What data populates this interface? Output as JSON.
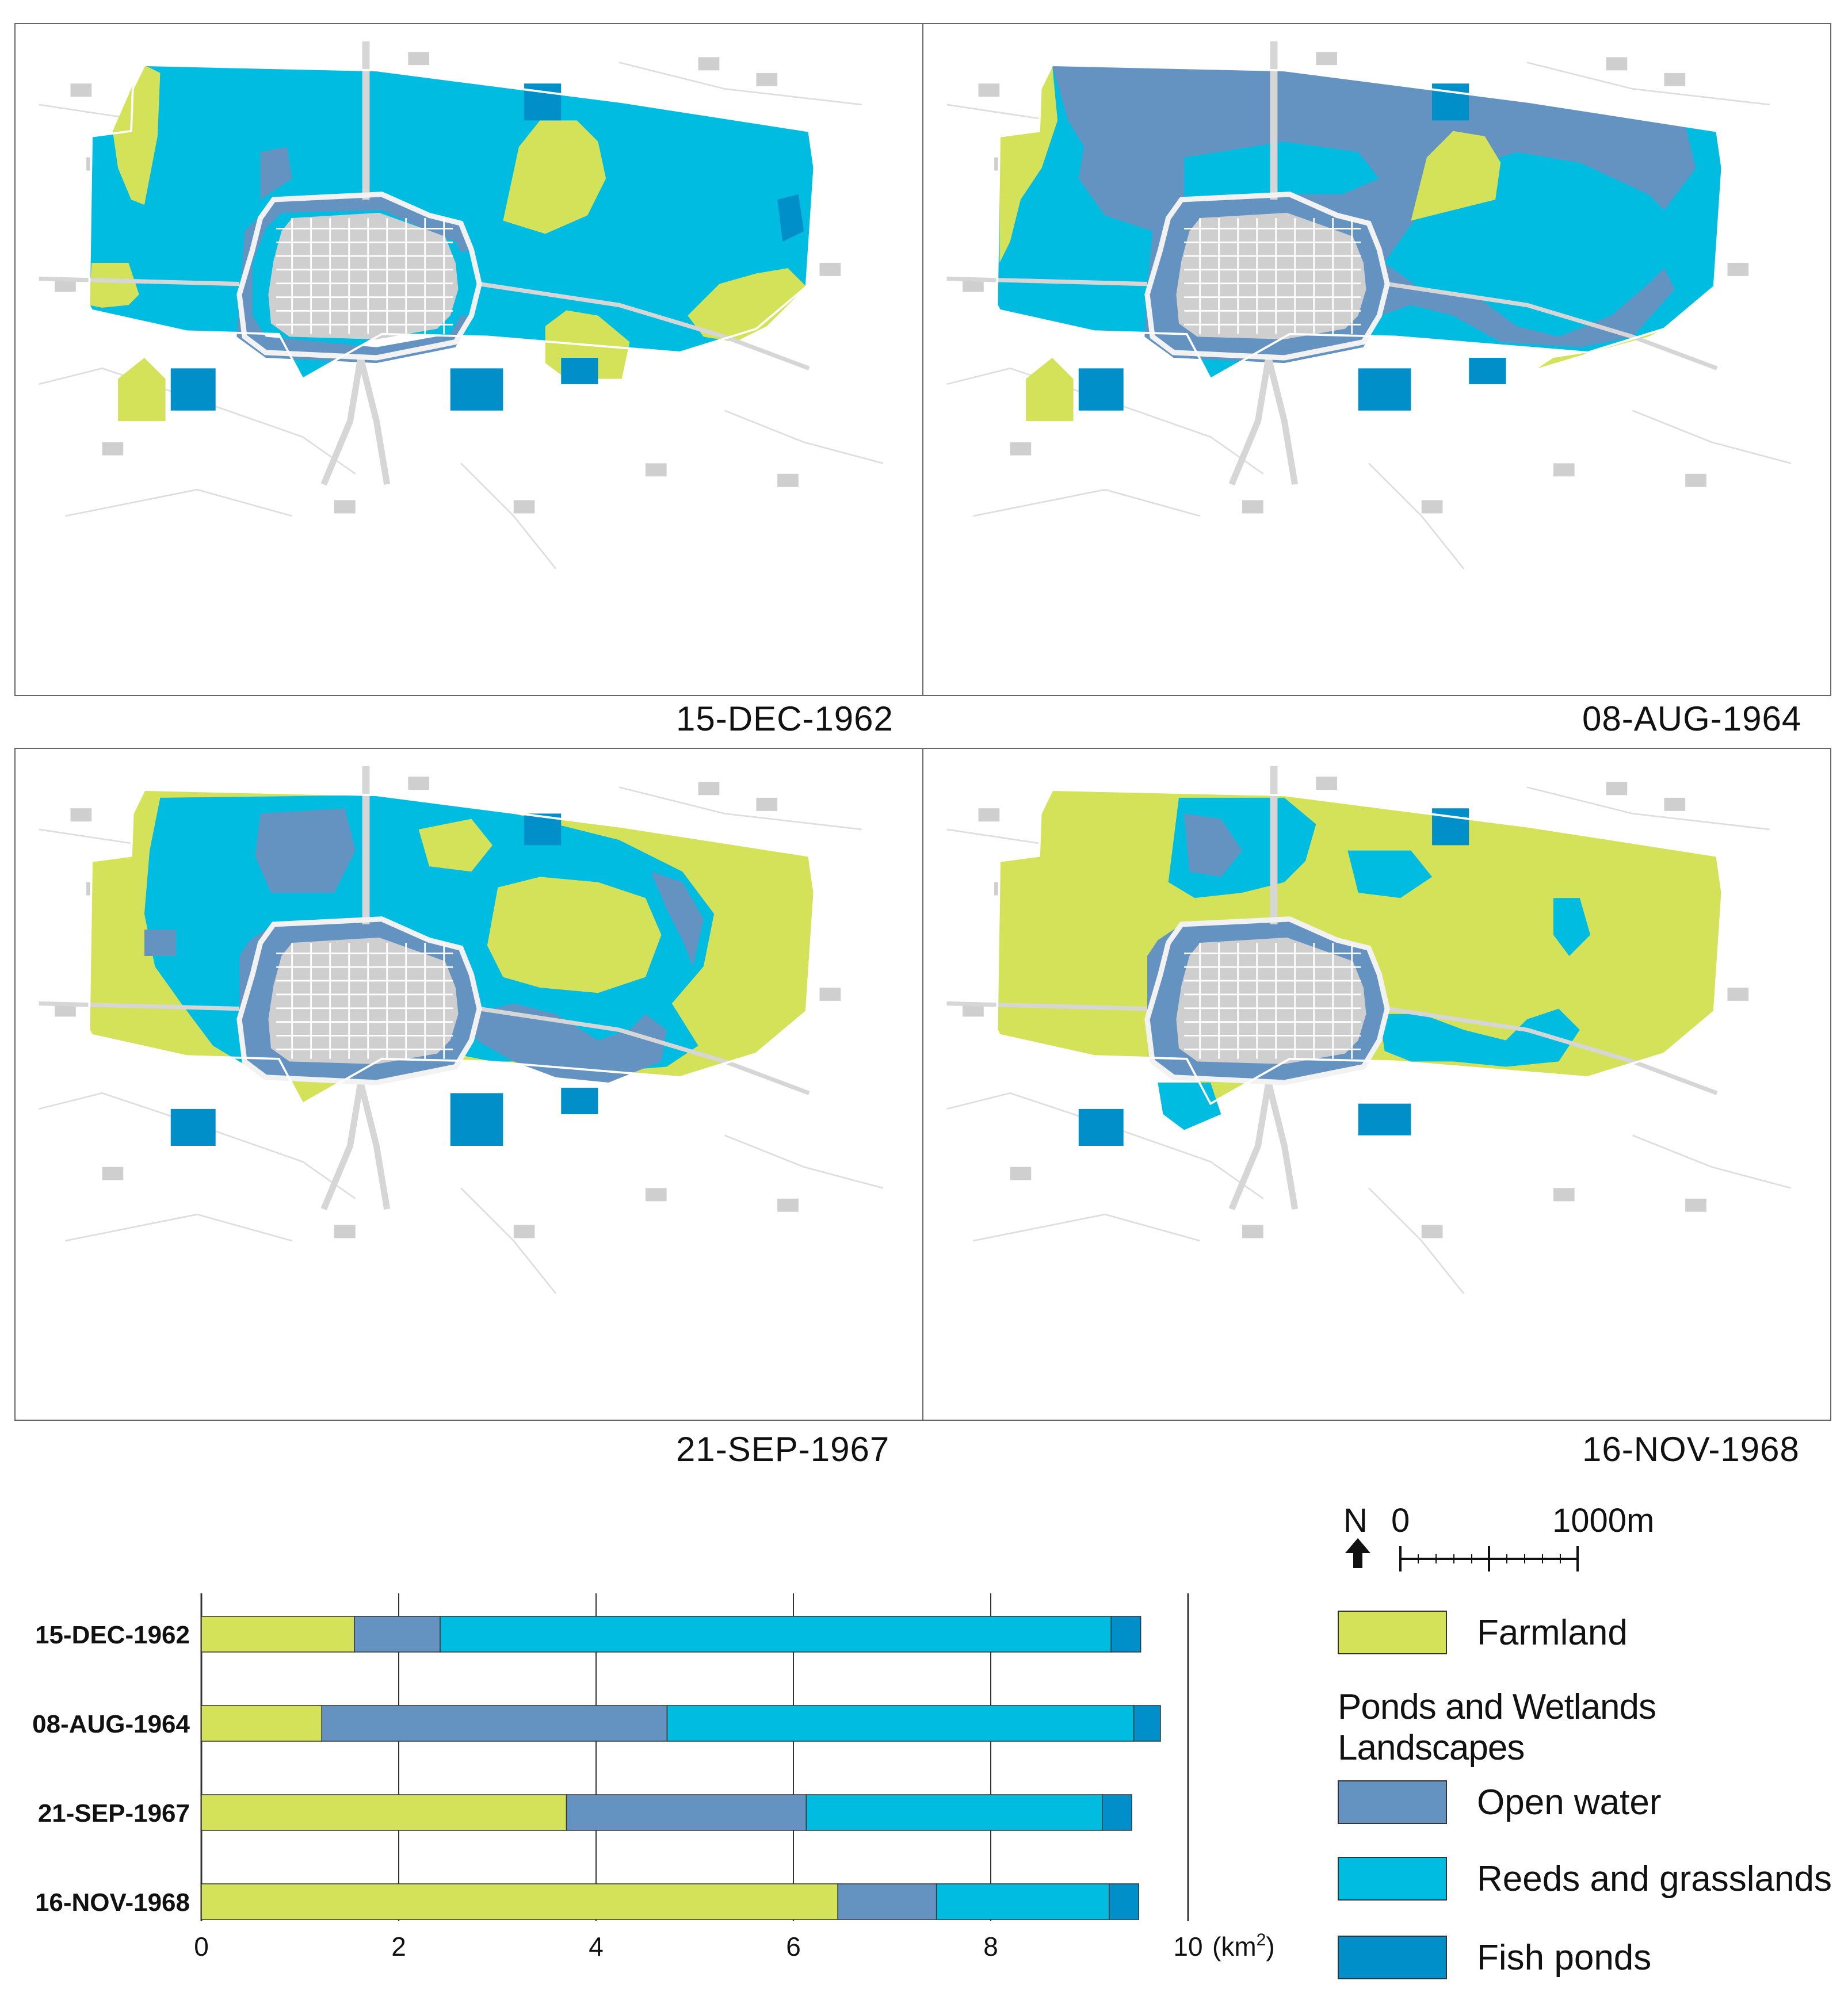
{
  "colors": {
    "farmland": "#d4e25a",
    "open_water": "#6593c1",
    "reeds": "#00bce0",
    "fish_ponds": "#008fc8",
    "urban": "#cfcfcf",
    "road": "#d6d6d6"
  },
  "maps": [
    {
      "date": "15-DEC-1962",
      "proportions": {
        "farmland": 1.55,
        "open_water": 0.87,
        "reeds": 6.8,
        "fish_ponds": 0.3
      }
    },
    {
      "date": "08-AUG-1964",
      "proportions": {
        "farmland": 1.22,
        "open_water": 3.5,
        "reeds": 4.73,
        "fish_ponds": 0.27
      }
    },
    {
      "date": "21-SEP-1967",
      "proportions": {
        "farmland": 3.7,
        "open_water": 2.43,
        "reeds": 3.0,
        "fish_ponds": 0.3
      }
    },
    {
      "date": "16-NOV-1968",
      "proportions": {
        "farmland": 6.45,
        "open_water": 1.0,
        "reeds": 1.75,
        "fish_ponds": 0.3
      }
    }
  ],
  "legend": {
    "farmland": "Farmland",
    "heading": "Ponds and Wetlands Landscapes",
    "open_water": "Open water",
    "reeds": "Reeds and grasslands",
    "fish_ponds": "Fish ponds"
  },
  "scale": {
    "north": "N",
    "start": "0",
    "end": "1000m",
    "north_icon": "north-arrow-icon"
  },
  "chart_data": {
    "type": "bar",
    "orientation": "horizontal",
    "stacked": true,
    "categories": [
      "15-DEC-1962",
      "08-AUG-1964",
      "21-SEP-1967",
      "16-NOV-1968"
    ],
    "series": [
      {
        "name": "Farmland",
        "values": [
          1.55,
          1.22,
          3.7,
          6.45
        ],
        "color": "#d4e25a"
      },
      {
        "name": "Open water",
        "values": [
          0.87,
          3.5,
          2.43,
          1.0
        ],
        "color": "#6593c1"
      },
      {
        "name": "Reeds and grasslands",
        "values": [
          6.8,
          4.73,
          3.0,
          1.75
        ],
        "color": "#00bce0"
      },
      {
        "name": "Fish ponds",
        "values": [
          0.3,
          0.27,
          0.3,
          0.3
        ],
        "color": "#008fc8"
      }
    ],
    "xticks": [
      "0",
      "2",
      "4",
      "6",
      "8",
      "10"
    ],
    "xlim": [
      0,
      10
    ],
    "unit_label": "(km",
    "unit_sup": "2",
    "unit_close": ")",
    "grid": true
  }
}
